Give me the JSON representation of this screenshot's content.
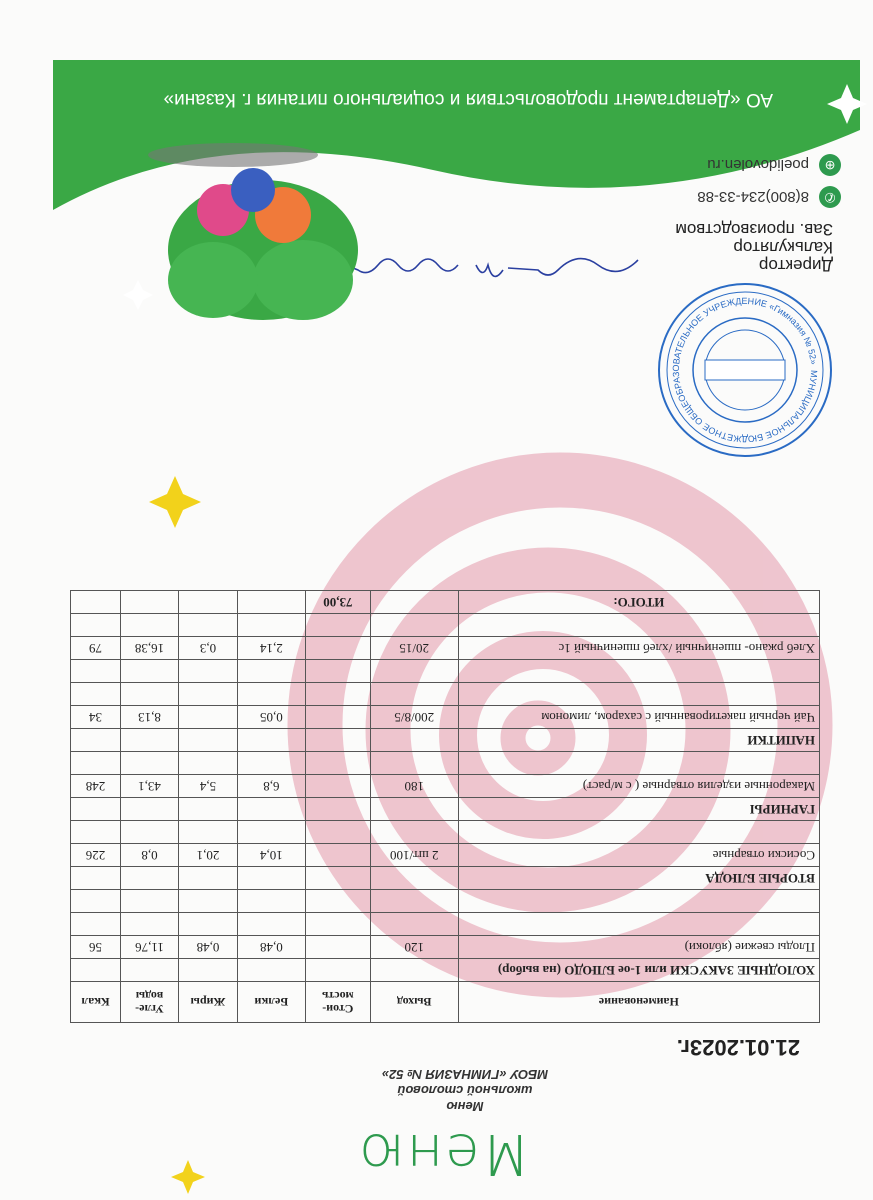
{
  "header": {
    "logo": "Меню",
    "subtitle_lines": [
      "Меню",
      "школьной столовой",
      "МБОУ «ГИМНАЗИЯ № 52»"
    ],
    "date": "21.01.2023г."
  },
  "table": {
    "columns": [
      "Наименование",
      "Выход",
      "Стои-мость",
      "Белки",
      "Жиры",
      "Угле-воды",
      "Ккал"
    ],
    "rows": [
      {
        "type": "category",
        "name": "ХОЛОДНЫЕ ЗАКУСКИ или 1-ое БЛЮДО (на выбор)"
      },
      {
        "type": "item",
        "name": "Плоды свежие (яблоки)",
        "output": "120",
        "price": "",
        "protein": "0,48",
        "fat": "0,48",
        "carbs": "11,76",
        "kcal": "56"
      },
      {
        "type": "empty"
      },
      {
        "type": "empty"
      },
      {
        "type": "category",
        "name": "ВТОРЫЕ БЛЮДА"
      },
      {
        "type": "item",
        "name": "Сосиски отварные",
        "output": "2 шт/100",
        "price": "",
        "protein": "10,4",
        "fat": "20,1",
        "carbs": "0,8",
        "kcal": "226"
      },
      {
        "type": "empty"
      },
      {
        "type": "category",
        "name": "ГАРНИРЫ"
      },
      {
        "type": "item",
        "name": "Макаронные изделия отварные ( с м/раст)",
        "output": "180",
        "price": "",
        "protein": "6,8",
        "fat": "5,4",
        "carbs": "43,1",
        "kcal": "248"
      },
      {
        "type": "empty"
      },
      {
        "type": "category",
        "name": "НАПИТКИ"
      },
      {
        "type": "item",
        "name": "Чай черный пакетированный с сахаром, лимоном",
        "output": "200/8/5",
        "price": "",
        "protein": "0,05",
        "fat": "",
        "carbs": "8,13",
        "kcal": "34"
      },
      {
        "type": "empty"
      },
      {
        "type": "empty"
      },
      {
        "type": "item",
        "name": "Хлеб  ржано- пшеничный /хлеб пшеничный 1с",
        "output": "20/15",
        "price": "",
        "protein": "2,14",
        "fat": "0,3",
        "carbs": "16,38",
        "kcal": "79"
      },
      {
        "type": "empty"
      }
    ],
    "total_label": "ИТОГО:",
    "total_price": "73,00"
  },
  "signers": [
    "Директор",
    "Калькулятор",
    "Зав. производством"
  ],
  "stamp_text": "МУНИЦИПАЛЬНОЕ БЮДЖЕТНОЕ ОБЩЕОБРАЗОВАТЕЛЬНОЕ УЧРЕЖДЕНИЕ «Гимназия № 52»",
  "footer": {
    "phone": "8(800)234-33-88",
    "website": "poelidovolen.ru",
    "department": "АО «Департамент продовольствия и социального питания г. Казани»",
    "phone_icon": "phone-icon",
    "web_icon": "globe-icon"
  },
  "colors": {
    "brand_green": "#3aa845",
    "spiral_pink": "#e8a9b8",
    "star_yellow": "#f2d21b",
    "stamp_blue": "#2a6bc4",
    "ink_blue": "#2a3fa0"
  }
}
